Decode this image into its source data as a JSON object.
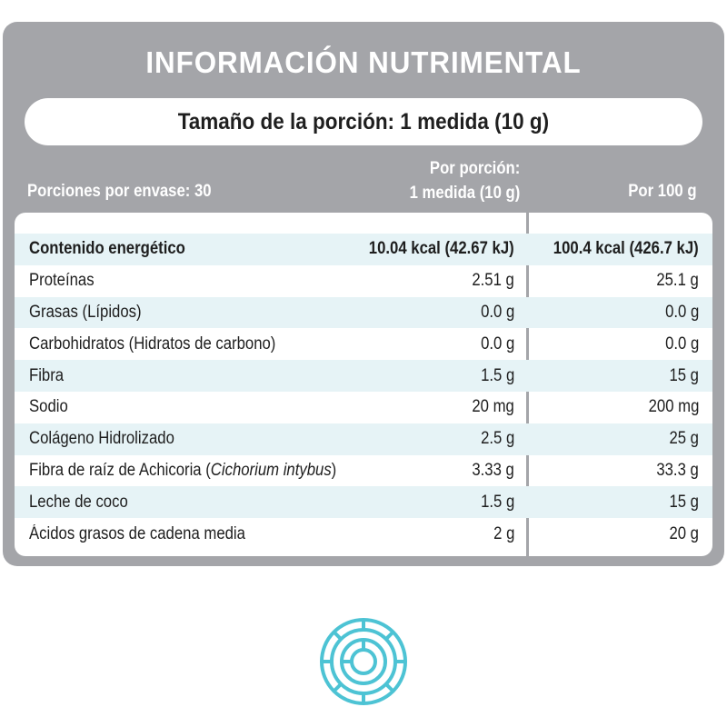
{
  "title": "INFORMACIÓN NUTRIMENTAL",
  "serving_size": "Tamaño de la porción: 1 medida (10 g)",
  "headers": {
    "servings_per_container": "Porciones por envase: 30",
    "per_serving_line1": "Por porción:",
    "per_serving_line2": "1 medida (10 g)",
    "per_100g": "Por 100 g"
  },
  "rows": [
    {
      "name": "Contenido energético",
      "per_serving": "10.04 kcal (42.67 kJ)",
      "per_100g": "100.4 kcal (426.7 kJ)"
    },
    {
      "name": "Proteínas",
      "per_serving": "2.51 g",
      "per_100g": "25.1 g"
    },
    {
      "name": "Grasas (Lípidos)",
      "per_serving": "0.0 g",
      "per_100g": "0.0 g"
    },
    {
      "name": "Carbohidratos (Hidratos de carbono)",
      "per_serving": "0.0 g",
      "per_100g": "0.0 g"
    },
    {
      "name": "Fibra",
      "per_serving": "1.5 g",
      "per_100g": "15 g"
    },
    {
      "name": "Sodio",
      "per_serving": "20 mg",
      "per_100g": "200 mg"
    },
    {
      "name": "Colágeno Hidrolizado",
      "per_serving": "2.5 g",
      "per_100g": "25 g"
    },
    {
      "name_prefix": "Fibra de raíz de Achicoria (",
      "name_italic": "Cichorium intybus",
      "name_suffix": ")",
      "per_serving": "3.33 g",
      "per_100g": "33.3 g"
    },
    {
      "name": "Leche de coco",
      "per_serving": "1.5 g",
      "per_100g": "15 g"
    },
    {
      "name": "Ácidos grasos de cadena media",
      "per_serving": "2 g",
      "per_100g": "20 g"
    }
  ],
  "colors": {
    "panel": "#a4a5a9",
    "row_shade": "#e6f3f6",
    "logo": "#4dc3d4"
  },
  "icons": {
    "logo": "circular-cyan-emblem-icon"
  }
}
